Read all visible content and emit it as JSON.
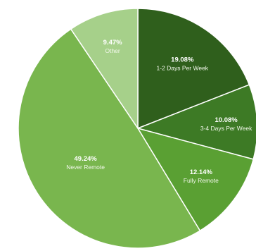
{
  "chart_data": {
    "type": "pie",
    "slices": [
      {
        "label": "1-2 Days Per Week",
        "value_label": "19.08%",
        "value": 19.08,
        "color": "#2f5f1c"
      },
      {
        "label": "3-4 Days Per Week",
        "value_label": "10.08%",
        "value": 10.08,
        "color": "#3d7a25"
      },
      {
        "label": "Fully Remote",
        "value_label": "12.14%",
        "value": 12.14,
        "color": "#5aa033"
      },
      {
        "label": "Never Remote",
        "value_label": "49.24%",
        "value": 49.24,
        "color": "#79b64e"
      },
      {
        "label": "Other",
        "value_label": "9.47%",
        "value": 9.47,
        "color": "#a6d08a"
      }
    ]
  }
}
